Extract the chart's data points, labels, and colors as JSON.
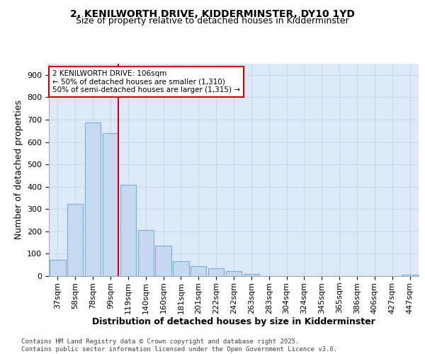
{
  "title_line1": "2, KENILWORTH DRIVE, KIDDERMINSTER, DY10 1YD",
  "title_line2": "Size of property relative to detached houses in Kidderminster",
  "xlabel": "Distribution of detached houses by size in Kidderminster",
  "ylabel": "Number of detached properties",
  "categories": [
    "37sqm",
    "58sqm",
    "78sqm",
    "99sqm",
    "119sqm",
    "140sqm",
    "160sqm",
    "181sqm",
    "201sqm",
    "222sqm",
    "242sqm",
    "263sqm",
    "283sqm",
    "304sqm",
    "324sqm",
    "345sqm",
    "365sqm",
    "386sqm",
    "406sqm",
    "427sqm",
    "447sqm"
  ],
  "values": [
    72,
    323,
    688,
    640,
    410,
    207,
    137,
    68,
    45,
    35,
    22,
    10,
    0,
    0,
    0,
    0,
    0,
    0,
    0,
    0,
    5
  ],
  "bar_color": "#c5d9f1",
  "bar_edge_color": "#7bafd4",
  "red_line_x": 3,
  "annotation_text": "2 KENILWORTH DRIVE: 106sqm\n← 50% of detached houses are smaller (1,310)\n50% of semi-detached houses are larger (1,315) →",
  "annotation_box_color": "#ffffff",
  "annotation_box_edge_color": "#cc0000",
  "vline_color": "#cc0000",
  "ylim": [
    0,
    950
  ],
  "yticks": [
    0,
    100,
    200,
    300,
    400,
    500,
    600,
    700,
    800,
    900
  ],
  "grid_color": "#c8d8ec",
  "background_color": "#dce9f8",
  "footer_text": "Contains HM Land Registry data © Crown copyright and database right 2025.\nContains public sector information licensed under the Open Government Licence v3.0.",
  "title_fontsize": 10,
  "subtitle_fontsize": 9,
  "axis_label_fontsize": 9,
  "tick_fontsize": 8,
  "footer_fontsize": 6.5,
  "annotation_fontsize": 7.5
}
